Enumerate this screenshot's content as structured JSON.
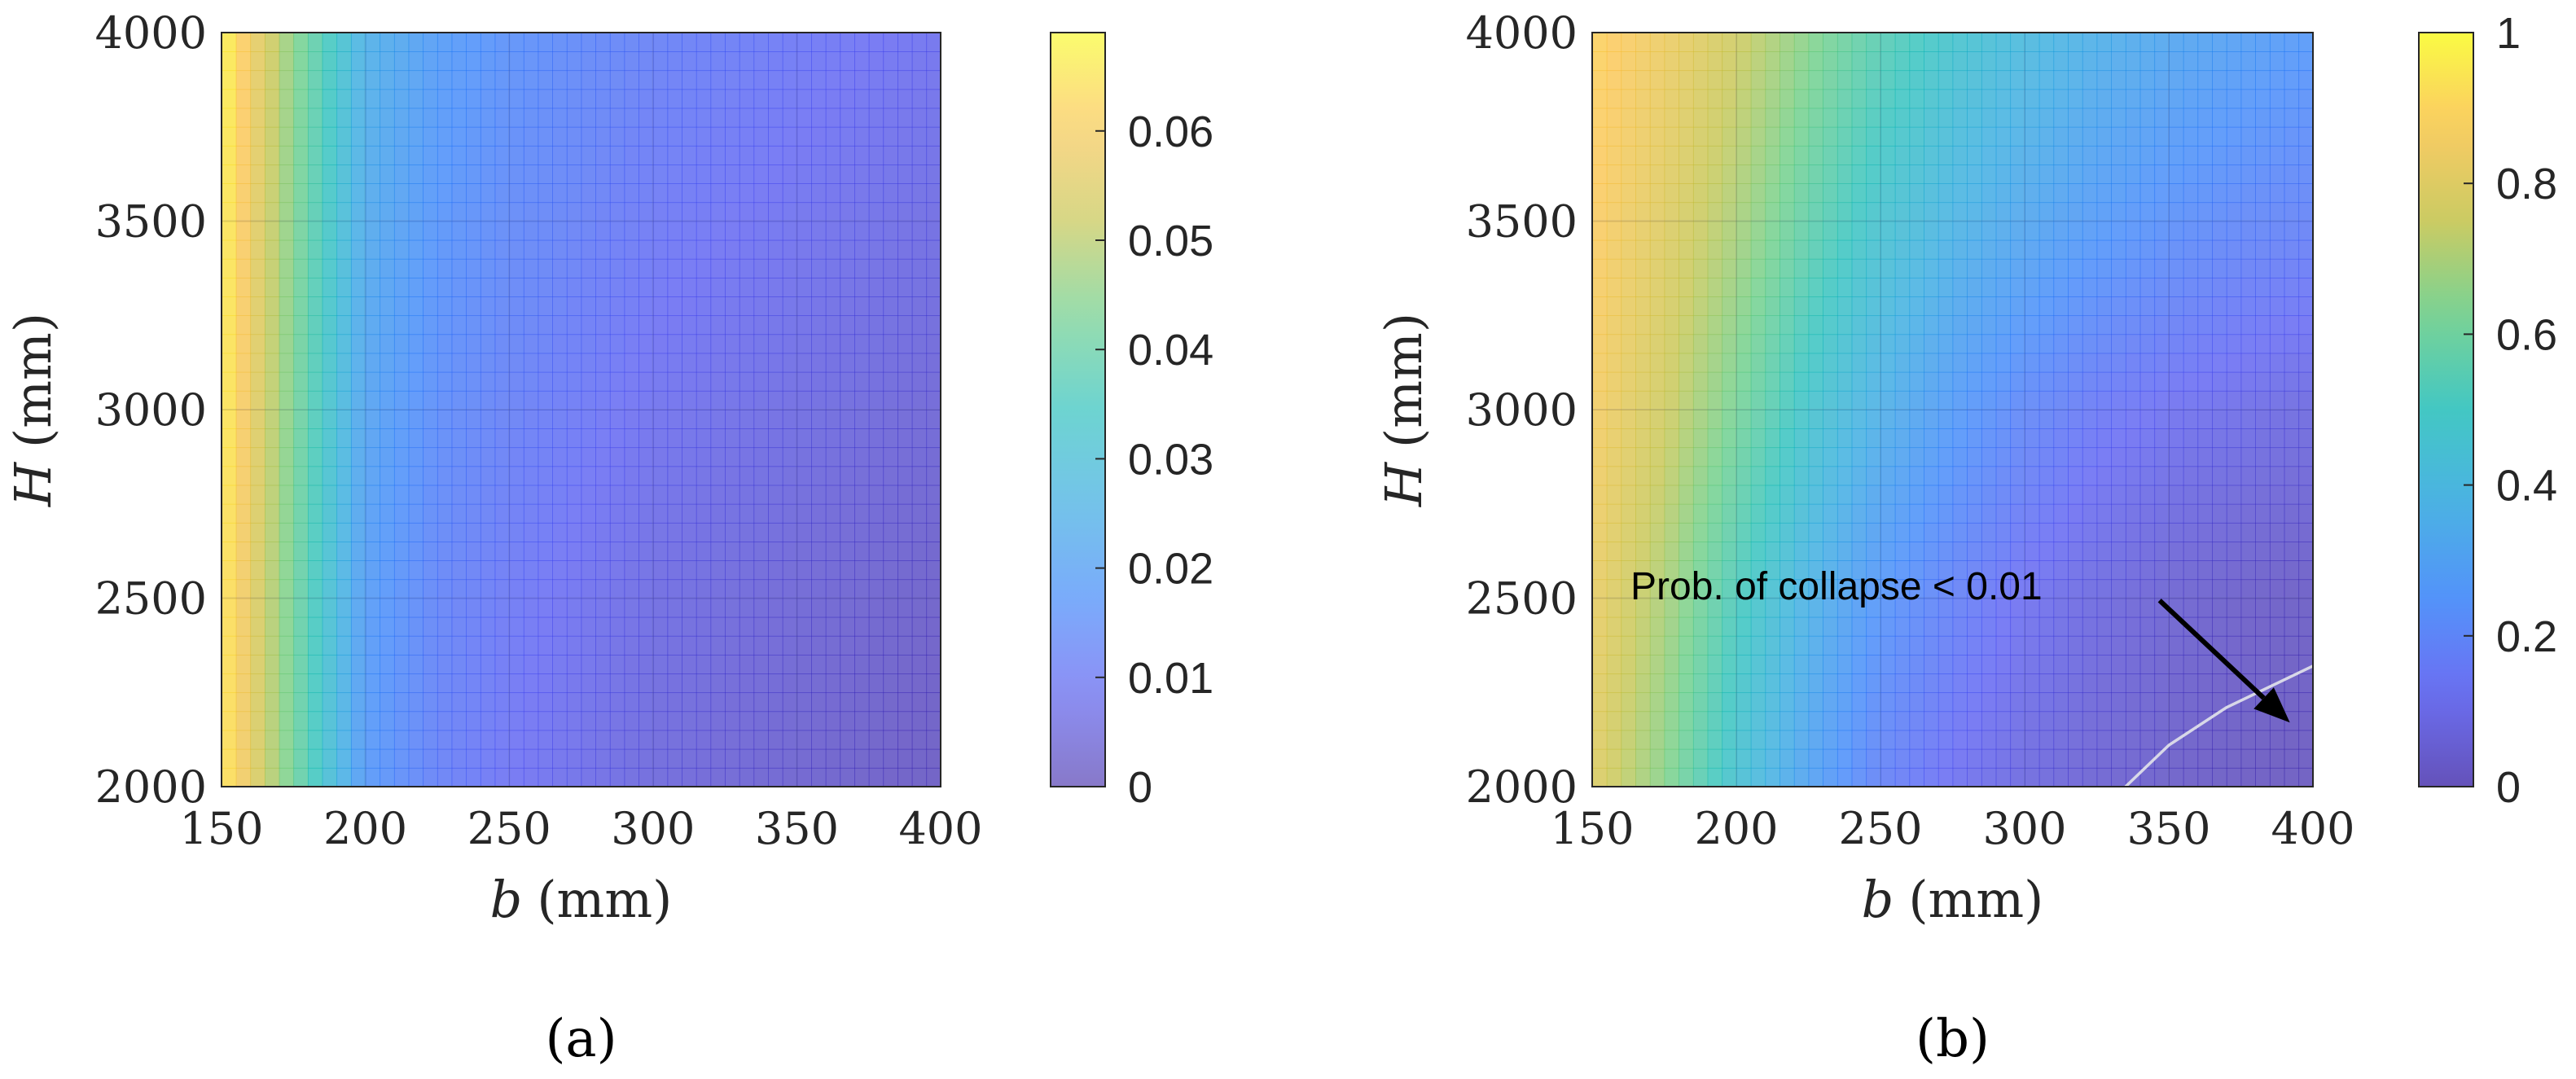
{
  "chart_data": [
    {
      "type": "heatmap",
      "panel_label": "(a)",
      "xlabel": {
        "var": "b",
        "unit": "(mm)"
      },
      "ylabel": {
        "var": "H",
        "unit": "(mm)"
      },
      "xlim": [
        150,
        400
      ],
      "ylim": [
        2000,
        4000
      ],
      "xticks": [
        "150",
        "200",
        "250",
        "300",
        "350",
        "400"
      ],
      "yticks": [
        "2000",
        "2500",
        "3000",
        "3500",
        "4000"
      ],
      "colorbar": {
        "range": [
          0,
          0.069
        ],
        "ticks": [
          "0",
          "0.01",
          "0.02",
          "0.03",
          "0.04",
          "0.05",
          "0.06"
        ]
      },
      "x": [
        150,
        175,
        200,
        225,
        250,
        275,
        300,
        325,
        350,
        375,
        400
      ],
      "y": [
        2000,
        2500,
        3000,
        3500,
        4000
      ],
      "z": [
        [
          0.066,
          0.042,
          0.018,
          0.012,
          0.009,
          0.007,
          0.005,
          0.004,
          0.003,
          0.002,
          0.001
        ],
        [
          0.066,
          0.042,
          0.019,
          0.013,
          0.01,
          0.008,
          0.006,
          0.005,
          0.004,
          0.003,
          0.002
        ],
        [
          0.067,
          0.043,
          0.021,
          0.015,
          0.012,
          0.01,
          0.008,
          0.007,
          0.006,
          0.005,
          0.004
        ],
        [
          0.067,
          0.044,
          0.023,
          0.017,
          0.014,
          0.012,
          0.01,
          0.009,
          0.008,
          0.007,
          0.006
        ],
        [
          0.068,
          0.045,
          0.025,
          0.019,
          0.016,
          0.014,
          0.012,
          0.011,
          0.01,
          0.009,
          0.008
        ]
      ],
      "grid": true
    },
    {
      "type": "heatmap",
      "panel_label": "(b)",
      "xlabel": {
        "var": "b",
        "unit": "(mm)"
      },
      "ylabel": {
        "var": "H",
        "unit": "(mm)"
      },
      "xlim": [
        150,
        400
      ],
      "ylim": [
        2000,
        4000
      ],
      "xticks": [
        "150",
        "200",
        "250",
        "300",
        "350",
        "400"
      ],
      "yticks": [
        "2000",
        "2500",
        "3000",
        "3500",
        "4000"
      ],
      "colorbar": {
        "range": [
          0,
          1
        ],
        "ticks": [
          "0",
          "0.2",
          "0.4",
          "0.6",
          "0.8",
          "1"
        ]
      },
      "x": [
        150,
        175,
        200,
        225,
        250,
        275,
        300,
        325,
        350,
        375,
        400
      ],
      "y": [
        2000,
        2500,
        3000,
        3500,
        4000
      ],
      "z": [
        [
          0.8,
          0.65,
          0.45,
          0.3,
          0.18,
          0.12,
          0.08,
          0.05,
          0.03,
          0.015,
          0.008
        ],
        [
          0.83,
          0.7,
          0.52,
          0.37,
          0.25,
          0.18,
          0.12,
          0.08,
          0.05,
          0.03,
          0.02
        ],
        [
          0.86,
          0.76,
          0.62,
          0.47,
          0.36,
          0.27,
          0.2,
          0.15,
          0.12,
          0.1,
          0.08
        ],
        [
          0.88,
          0.8,
          0.7,
          0.57,
          0.46,
          0.38,
          0.32,
          0.27,
          0.23,
          0.2,
          0.18
        ],
        [
          0.9,
          0.84,
          0.76,
          0.65,
          0.55,
          0.47,
          0.41,
          0.36,
          0.32,
          0.29,
          0.26
        ]
      ],
      "contour": {
        "level": 0.01,
        "points": [
          [
            335,
            2000
          ],
          [
            350,
            2110
          ],
          [
            370,
            2210
          ],
          [
            400,
            2320
          ]
        ]
      },
      "annotation": {
        "text": "Prob. of collapse < 0.01",
        "arrow_to": [
          392,
          2170
        ]
      },
      "grid": true
    }
  ]
}
